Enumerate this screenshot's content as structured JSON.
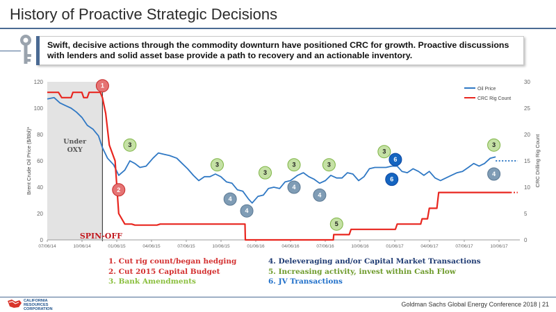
{
  "page": {
    "title": "History of Proactive Strategic Decisions",
    "callout": "Swift, decisive actions through the commodity downturn have positioned CRC for growth. Proactive discussions with lenders and solid asset base provide a path to recovery and an actionable inventory.",
    "footer": "Goldman Sachs Global Energy Conference 2018  |  21",
    "logo_lines": [
      "CALIFORNIA",
      "RESOURCES",
      "CORPORATION"
    ]
  },
  "colors": {
    "oil": "#2f78c4",
    "rig": "#e8261f",
    "accent": "#4a6a93",
    "legend_red": "#d32f2f",
    "legend_green": "#8bbf3f",
    "legend_navy": "#1f3b73",
    "legend_olive": "#6d9a2a",
    "legend_blue": "#1f6fc9"
  },
  "chart_data": {
    "type": "line",
    "x_ticks": [
      "07/06/14",
      "10/06/14",
      "01/06/15",
      "04/06/15",
      "07/06/15",
      "10/06/15",
      "01/06/16",
      "04/06/16",
      "07/06/16",
      "10/06/16",
      "01/06/17",
      "04/06/17",
      "07/06/17",
      "10/06/17"
    ],
    "x_start": "2014-07-01",
    "x_end": "2018-01-31",
    "ylabel": "Brent Crude Oil Price ($/Bbl)*",
    "y2label": "CRC Drilling Rig Count",
    "ylim": [
      0,
      120
    ],
    "y_ticks": [
      0,
      20,
      40,
      60,
      80,
      100,
      120
    ],
    "y2lim": [
      0,
      30
    ],
    "y2_ticks": [
      0,
      5,
      10,
      15,
      20,
      25,
      30
    ],
    "legend": [
      "Oil Price",
      "CRC Rig Count"
    ],
    "legend_position": "top-right",
    "shaded_region": {
      "from": "2014-07-01",
      "to": "2014-12-01",
      "label": "Under OXY"
    },
    "spin_off": {
      "date": "2014-12-01",
      "label": "SPIN-OFF"
    },
    "series": [
      {
        "name": "Oil Price",
        "axis": "left",
        "points": [
          [
            "2014-07-01",
            107
          ],
          [
            "2014-07-20",
            108
          ],
          [
            "2014-08-05",
            104
          ],
          [
            "2014-08-20",
            102
          ],
          [
            "2014-09-05",
            100
          ],
          [
            "2014-09-20",
            97
          ],
          [
            "2014-10-05",
            93
          ],
          [
            "2014-10-20",
            87
          ],
          [
            "2014-11-05",
            84
          ],
          [
            "2014-11-20",
            79
          ],
          [
            "2014-12-01",
            70
          ],
          [
            "2014-12-15",
            62
          ],
          [
            "2015-01-01",
            57
          ],
          [
            "2015-01-15",
            49
          ],
          [
            "2015-02-01",
            53
          ],
          [
            "2015-02-15",
            60
          ],
          [
            "2015-03-01",
            58
          ],
          [
            "2015-03-15",
            55
          ],
          [
            "2015-04-01",
            56
          ],
          [
            "2015-04-20",
            62
          ],
          [
            "2015-05-05",
            66
          ],
          [
            "2015-05-20",
            65
          ],
          [
            "2015-06-05",
            64
          ],
          [
            "2015-06-25",
            62
          ],
          [
            "2015-07-10",
            58
          ],
          [
            "2015-07-25",
            54
          ],
          [
            "2015-08-10",
            49
          ],
          [
            "2015-08-25",
            45
          ],
          [
            "2015-09-10",
            48
          ],
          [
            "2015-09-25",
            48
          ],
          [
            "2015-10-10",
            50
          ],
          [
            "2015-10-25",
            48
          ],
          [
            "2015-11-10",
            44
          ],
          [
            "2015-11-25",
            43
          ],
          [
            "2015-12-10",
            38
          ],
          [
            "2015-12-25",
            37
          ],
          [
            "2016-01-10",
            31
          ],
          [
            "2016-01-20",
            28
          ],
          [
            "2016-02-05",
            33
          ],
          [
            "2016-02-20",
            34
          ],
          [
            "2016-03-05",
            39
          ],
          [
            "2016-03-20",
            40
          ],
          [
            "2016-04-05",
            39
          ],
          [
            "2016-04-20",
            44
          ],
          [
            "2016-05-05",
            45
          ],
          [
            "2016-05-25",
            49
          ],
          [
            "2016-06-10",
            51
          ],
          [
            "2016-06-25",
            48
          ],
          [
            "2016-07-10",
            46
          ],
          [
            "2016-07-25",
            43
          ],
          [
            "2016-08-10",
            45
          ],
          [
            "2016-08-25",
            49
          ],
          [
            "2016-09-10",
            47
          ],
          [
            "2016-09-25",
            47
          ],
          [
            "2016-10-10",
            51
          ],
          [
            "2016-10-25",
            50
          ],
          [
            "2016-11-10",
            45
          ],
          [
            "2016-11-25",
            48
          ],
          [
            "2016-12-10",
            54
          ],
          [
            "2016-12-25",
            55
          ],
          [
            "2017-01-10",
            55
          ],
          [
            "2017-01-25",
            55
          ],
          [
            "2017-02-10",
            56
          ],
          [
            "2017-02-25",
            56
          ],
          [
            "2017-03-10",
            52
          ],
          [
            "2017-03-25",
            51
          ],
          [
            "2017-04-10",
            54
          ],
          [
            "2017-04-25",
            52
          ],
          [
            "2017-05-10",
            49
          ],
          [
            "2017-05-25",
            52
          ],
          [
            "2017-06-10",
            47
          ],
          [
            "2017-06-25",
            45
          ],
          [
            "2017-07-10",
            47
          ],
          [
            "2017-07-25",
            49
          ],
          [
            "2017-08-10",
            51
          ],
          [
            "2017-08-25",
            52
          ],
          [
            "2017-09-10",
            55
          ],
          [
            "2017-09-25",
            58
          ],
          [
            "2017-10-10",
            56
          ],
          [
            "2017-10-25",
            58
          ],
          [
            "2017-11-10",
            62
          ],
          [
            "2017-11-25",
            63
          ]
        ],
        "projection": [
          [
            "2017-11-25",
            60
          ],
          [
            "2018-01-25",
            60
          ]
        ]
      },
      {
        "name": "CRC Rig Count",
        "axis": "right",
        "points": [
          [
            "2014-07-01",
            28
          ],
          [
            "2014-08-01",
            28
          ],
          [
            "2014-08-10",
            27
          ],
          [
            "2014-09-05",
            27
          ],
          [
            "2014-09-10",
            28
          ],
          [
            "2014-10-05",
            28
          ],
          [
            "2014-10-10",
            27
          ],
          [
            "2014-10-20",
            27
          ],
          [
            "2014-10-25",
            28
          ],
          [
            "2014-11-25",
            28
          ],
          [
            "2014-12-01",
            27
          ],
          [
            "2014-12-10",
            24
          ],
          [
            "2014-12-20",
            18
          ],
          [
            "2015-01-05",
            15
          ],
          [
            "2015-01-15",
            5
          ],
          [
            "2015-02-01",
            3
          ],
          [
            "2015-02-20",
            3
          ],
          [
            "2015-03-01",
            2.8
          ],
          [
            "2015-05-01",
            2.8
          ],
          [
            "2015-05-10",
            3
          ],
          [
            "2015-12-31",
            3
          ],
          [
            "2016-01-01",
            0
          ],
          [
            "2016-09-01",
            0
          ],
          [
            "2016-09-02",
            1
          ],
          [
            "2016-10-15",
            1
          ],
          [
            "2016-10-20",
            2
          ],
          [
            "2017-02-20",
            2
          ],
          [
            "2017-02-25",
            3
          ],
          [
            "2017-05-01",
            3
          ],
          [
            "2017-05-05",
            4
          ],
          [
            "2017-05-20",
            4
          ],
          [
            "2017-05-25",
            6
          ],
          [
            "2017-06-15",
            6
          ],
          [
            "2017-06-20",
            9
          ],
          [
            "2018-01-05",
            9
          ]
        ],
        "projection": [
          [
            "2018-01-05",
            9
          ],
          [
            "2018-01-25",
            9
          ]
        ]
      }
    ],
    "markers": [
      {
        "label": "1",
        "date": "2014-12-01",
        "value": 117,
        "color": "red"
      },
      {
        "label": "2",
        "date": "2015-01-15",
        "value": 38,
        "color": "red"
      },
      {
        "label": "3",
        "date": "2015-02-15",
        "value": 72,
        "color": "green"
      },
      {
        "label": "3",
        "date": "2015-10-15",
        "value": 57,
        "color": "green"
      },
      {
        "label": "3",
        "date": "2016-02-25",
        "value": 51,
        "color": "green"
      },
      {
        "label": "3",
        "date": "2016-05-15",
        "value": 57,
        "color": "green"
      },
      {
        "label": "3",
        "date": "2016-08-20",
        "value": 57,
        "color": "green"
      },
      {
        "label": "3",
        "date": "2017-01-20",
        "value": 67,
        "color": "green"
      },
      {
        "label": "3",
        "date": "2017-11-20",
        "value": 72,
        "color": "green"
      },
      {
        "label": "4",
        "date": "2015-11-20",
        "value": 31,
        "color": "steel"
      },
      {
        "label": "4",
        "date": "2016-01-05",
        "value": 22,
        "color": "steel"
      },
      {
        "label": "4",
        "date": "2016-05-15",
        "value": 40,
        "color": "steel"
      },
      {
        "label": "4",
        "date": "2016-07-25",
        "value": 34,
        "color": "steel"
      },
      {
        "label": "4",
        "date": "2017-11-20",
        "value": 50,
        "color": "steel"
      },
      {
        "label": "5",
        "date": "2016-09-10",
        "value": 12,
        "color": "green"
      },
      {
        "label": "6",
        "date": "2017-02-10",
        "value": 46,
        "color": "blue"
      },
      {
        "label": "6",
        "date": "2017-02-20",
        "value": 61,
        "color": "blue"
      }
    ]
  },
  "legend_items": [
    {
      "text": "1.  Cut rig count/began hedging",
      "color": "red"
    },
    {
      "text": "2.  Cut 2015 Capital Budget",
      "color": "red"
    },
    {
      "text": "3.  Bank Amendments",
      "color": "green"
    },
    {
      "text": "4. Deleveraging and/or Capital Market Transactions",
      "color": "navy"
    },
    {
      "text": "5. Increasing activity, invest within Cash Flow",
      "color": "olive"
    },
    {
      "text": "6. JV Transactions",
      "color": "blue"
    }
  ]
}
